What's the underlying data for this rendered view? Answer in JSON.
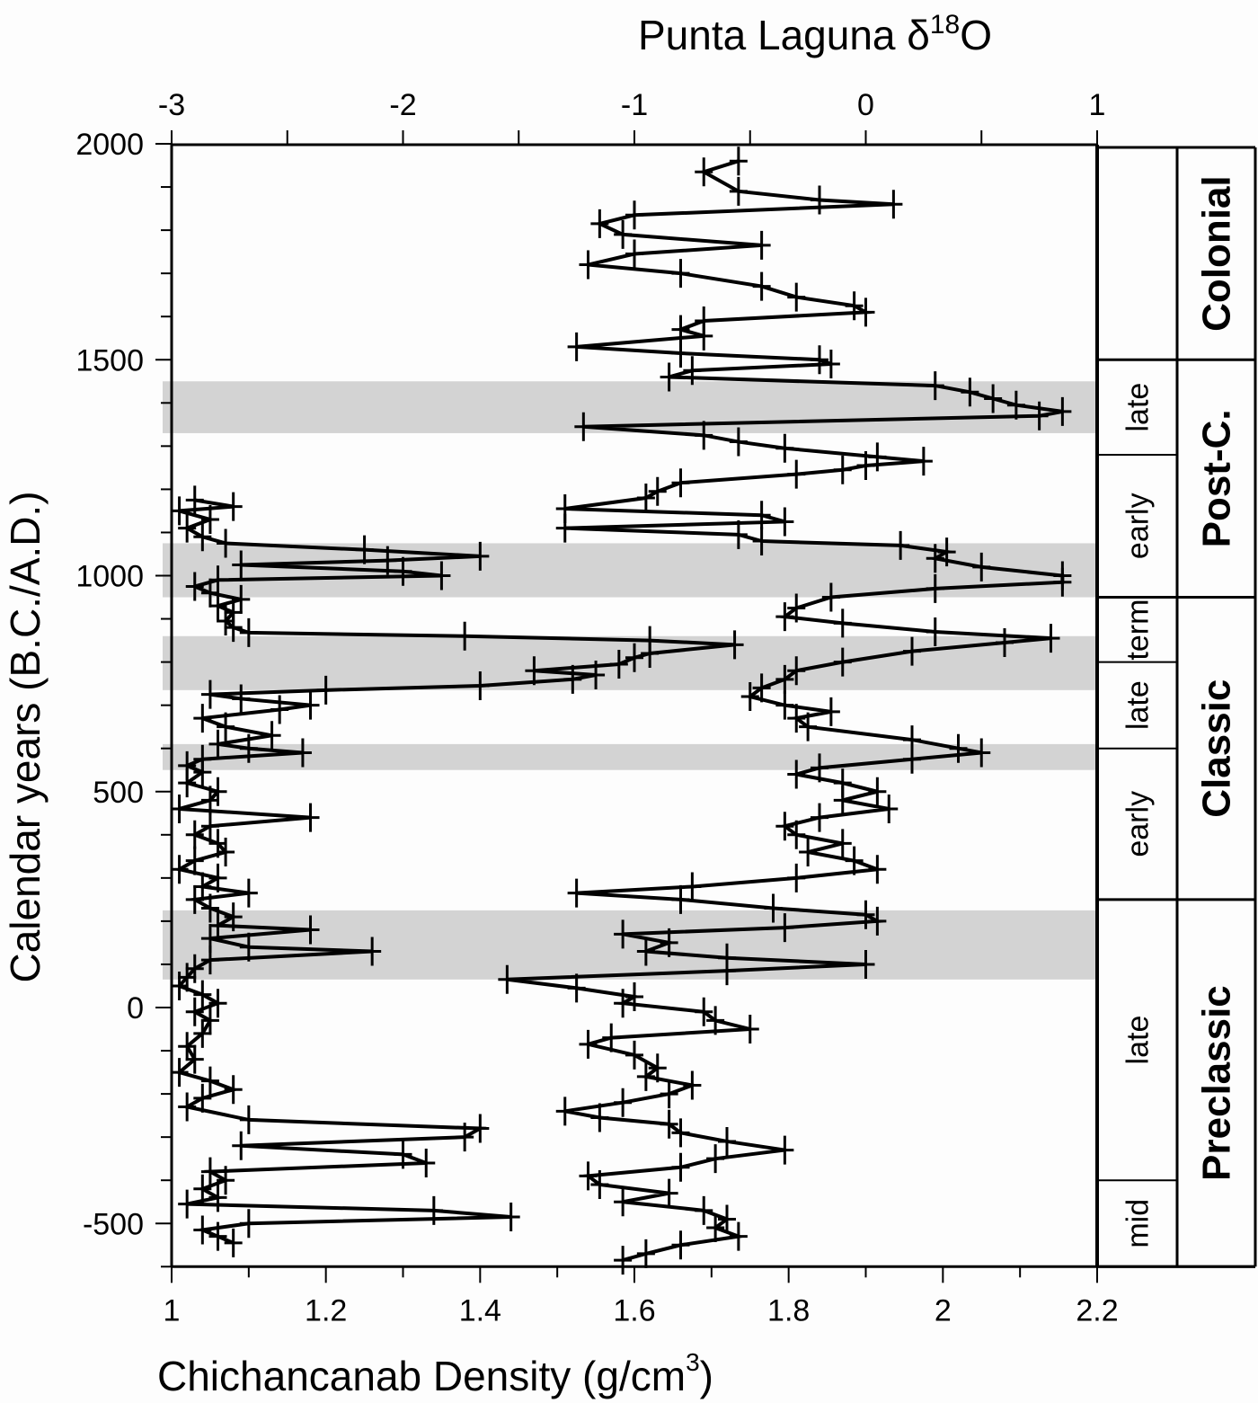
{
  "chart_data": {
    "type": "line",
    "title": "",
    "top_axis": {
      "label": "Punta Laguna δ18O",
      "label_main": "Punta Laguna δ",
      "label_sup": "18",
      "label_tail": "O",
      "ticks": [
        "-3",
        "-2",
        "-1",
        "0",
        "1"
      ],
      "range": [
        -3,
        1
      ]
    },
    "bottom_axis": {
      "label": "Chichancanab Density (g/cm3)",
      "label_main": "Chichancanab Density (g/cm",
      "label_sup": "3",
      "label_tail": ")",
      "ticks": [
        "1",
        "1.2",
        "1.4",
        "1.6",
        "1.8",
        "2",
        "2.2"
      ],
      "range": [
        1.0,
        2.2
      ]
    },
    "left_axis": {
      "label": "Calendar years (B.C./A.D.)",
      "ticks": [
        "2000",
        "1500",
        "1000",
        "500",
        "0",
        "-500"
      ],
      "range": [
        -600,
        2000
      ]
    },
    "shaded_dry_intervals": [
      {
        "from": 1330,
        "to": 1450
      },
      {
        "from": 950,
        "to": 1075
      },
      {
        "from": 735,
        "to": 860
      },
      {
        "from": 550,
        "to": 610
      },
      {
        "from": 65,
        "to": 225
      }
    ],
    "series": [
      {
        "name": "Chichancanab Density",
        "axis": "bottom",
        "unit": "g/cm3",
        "points": [
          [
            1175,
            1.03
          ],
          [
            1160,
            1.08
          ],
          [
            1150,
            1.01
          ],
          [
            1130,
            1.05
          ],
          [
            1110,
            1.02
          ],
          [
            1090,
            1.04
          ],
          [
            1075,
            1.07
          ],
          [
            1060,
            1.25
          ],
          [
            1045,
            1.4
          ],
          [
            1035,
            1.28
          ],
          [
            1025,
            1.09
          ],
          [
            1010,
            1.3
          ],
          [
            1000,
            1.35
          ],
          [
            990,
            1.06
          ],
          [
            975,
            1.03
          ],
          [
            960,
            1.05
          ],
          [
            945,
            1.09
          ],
          [
            930,
            1.06
          ],
          [
            915,
            1.08
          ],
          [
            895,
            1.07
          ],
          [
            880,
            1.08
          ],
          [
            868,
            1.1
          ],
          [
            860,
            1.38
          ],
          [
            850,
            1.62
          ],
          [
            840,
            1.73
          ],
          [
            820,
            1.62
          ],
          [
            810,
            1.6
          ],
          [
            795,
            1.58
          ],
          [
            780,
            1.47
          ],
          [
            770,
            1.55
          ],
          [
            760,
            1.52
          ],
          [
            745,
            1.4
          ],
          [
            735,
            1.2
          ],
          [
            725,
            1.05
          ],
          [
            715,
            1.09
          ],
          [
            700,
            1.18
          ],
          [
            690,
            1.14
          ],
          [
            670,
            1.04
          ],
          [
            650,
            1.07
          ],
          [
            630,
            1.13
          ],
          [
            610,
            1.06
          ],
          [
            600,
            1.1
          ],
          [
            590,
            1.17
          ],
          [
            575,
            1.04
          ],
          [
            560,
            1.02
          ],
          [
            545,
            1.04
          ],
          [
            520,
            1.02
          ],
          [
            500,
            1.06
          ],
          [
            480,
            1.05
          ],
          [
            460,
            1.01
          ],
          [
            440,
            1.18
          ],
          [
            420,
            1.05
          ],
          [
            400,
            1.03
          ],
          [
            380,
            1.06
          ],
          [
            360,
            1.07
          ],
          [
            340,
            1.03
          ],
          [
            320,
            1.01
          ],
          [
            300,
            1.06
          ],
          [
            280,
            1.04
          ],
          [
            265,
            1.1
          ],
          [
            250,
            1.03
          ],
          [
            230,
            1.05
          ],
          [
            210,
            1.08
          ],
          [
            190,
            1.06
          ],
          [
            180,
            1.18
          ],
          [
            160,
            1.05
          ],
          [
            140,
            1.1
          ],
          [
            130,
            1.26
          ],
          [
            110,
            1.05
          ],
          [
            90,
            1.03
          ],
          [
            70,
            1.02
          ],
          [
            50,
            1.01
          ],
          [
            30,
            1.04
          ],
          [
            10,
            1.06
          ],
          [
            -10,
            1.03
          ],
          [
            -30,
            1.05
          ],
          [
            -60,
            1.04
          ],
          [
            -90,
            1.02
          ],
          [
            -120,
            1.03
          ],
          [
            -150,
            1.01
          ],
          [
            -170,
            1.05
          ],
          [
            -190,
            1.08
          ],
          [
            -210,
            1.04
          ],
          [
            -230,
            1.02
          ],
          [
            -260,
            1.1
          ],
          [
            -280,
            1.4
          ],
          [
            -300,
            1.38
          ],
          [
            -320,
            1.09
          ],
          [
            -340,
            1.3
          ],
          [
            -360,
            1.33
          ],
          [
            -380,
            1.05
          ],
          [
            -400,
            1.07
          ],
          [
            -420,
            1.04
          ],
          [
            -440,
            1.06
          ],
          [
            -455,
            1.02
          ],
          [
            -470,
            1.34
          ],
          [
            -485,
            1.44
          ],
          [
            -500,
            1.1
          ],
          [
            -515,
            1.04
          ],
          [
            -530,
            1.06
          ],
          [
            -545,
            1.08
          ]
        ]
      },
      {
        "name": "Punta Laguna δ18O",
        "axis": "top",
        "unit": "‰",
        "points": [
          [
            1960,
            -0.55
          ],
          [
            1935,
            -0.7
          ],
          [
            1890,
            -0.55
          ],
          [
            1870,
            -0.2
          ],
          [
            1860,
            0.12
          ],
          [
            1835,
            -1.0
          ],
          [
            1815,
            -1.15
          ],
          [
            1790,
            -1.05
          ],
          [
            1765,
            -0.45
          ],
          [
            1745,
            -1.0
          ],
          [
            1720,
            -1.2
          ],
          [
            1700,
            -0.8
          ],
          [
            1670,
            -0.45
          ],
          [
            1645,
            -0.3
          ],
          [
            1625,
            -0.05
          ],
          [
            1610,
            0.0
          ],
          [
            1590,
            -0.7
          ],
          [
            1570,
            -0.8
          ],
          [
            1555,
            -0.7
          ],
          [
            1530,
            -1.25
          ],
          [
            1515,
            -0.8
          ],
          [
            1500,
            -0.2
          ],
          [
            1490,
            -0.15
          ],
          [
            1475,
            -0.75
          ],
          [
            1460,
            -0.85
          ],
          [
            1440,
            0.3
          ],
          [
            1425,
            0.45
          ],
          [
            1410,
            0.55
          ],
          [
            1395,
            0.65
          ],
          [
            1380,
            0.85
          ],
          [
            1370,
            0.75
          ],
          [
            1345,
            -1.22
          ],
          [
            1325,
            -0.7
          ],
          [
            1310,
            -0.55
          ],
          [
            1295,
            -0.35
          ],
          [
            1275,
            0.05
          ],
          [
            1265,
            0.25
          ],
          [
            1255,
            0.0
          ],
          [
            1245,
            -0.1
          ],
          [
            1235,
            -0.3
          ],
          [
            1215,
            -0.8
          ],
          [
            1195,
            -0.9
          ],
          [
            1180,
            -0.95
          ],
          [
            1155,
            -1.3
          ],
          [
            1140,
            -0.45
          ],
          [
            1125,
            -0.35
          ],
          [
            1110,
            -1.3
          ],
          [
            1095,
            -0.55
          ],
          [
            1080,
            -0.45
          ],
          [
            1070,
            0.15
          ],
          [
            1055,
            0.35
          ],
          [
            1040,
            0.3
          ],
          [
            1020,
            0.5
          ],
          [
            1000,
            0.85
          ],
          [
            985,
            0.85
          ],
          [
            970,
            0.3
          ],
          [
            950,
            -0.15
          ],
          [
            925,
            -0.3
          ],
          [
            905,
            -0.35
          ],
          [
            890,
            -0.1
          ],
          [
            870,
            0.3
          ],
          [
            855,
            0.8
          ],
          [
            845,
            0.6
          ],
          [
            825,
            0.2
          ],
          [
            800,
            -0.1
          ],
          [
            780,
            -0.3
          ],
          [
            760,
            -0.35
          ],
          [
            740,
            -0.45
          ],
          [
            720,
            -0.5
          ],
          [
            700,
            -0.35
          ],
          [
            685,
            -0.15
          ],
          [
            670,
            -0.3
          ],
          [
            650,
            -0.25
          ],
          [
            620,
            0.2
          ],
          [
            600,
            0.4
          ],
          [
            590,
            0.5
          ],
          [
            575,
            0.2
          ],
          [
            555,
            -0.2
          ],
          [
            540,
            -0.3
          ],
          [
            520,
            -0.1
          ],
          [
            500,
            0.05
          ],
          [
            480,
            -0.1
          ],
          [
            460,
            0.1
          ],
          [
            440,
            -0.2
          ],
          [
            420,
            -0.35
          ],
          [
            400,
            -0.3
          ],
          [
            380,
            -0.1
          ],
          [
            360,
            -0.25
          ],
          [
            340,
            -0.05
          ],
          [
            320,
            0.05
          ],
          [
            300,
            -0.3
          ],
          [
            280,
            -0.75
          ],
          [
            265,
            -1.25
          ],
          [
            250,
            -0.8
          ],
          [
            230,
            -0.4
          ],
          [
            215,
            0.0
          ],
          [
            200,
            0.05
          ],
          [
            185,
            -0.35
          ],
          [
            170,
            -1.05
          ],
          [
            150,
            -0.85
          ],
          [
            130,
            -0.95
          ],
          [
            115,
            -0.6
          ],
          [
            100,
            0.0
          ],
          [
            85,
            -0.6
          ],
          [
            65,
            -1.55
          ],
          [
            45,
            -1.25
          ],
          [
            25,
            -1.0
          ],
          [
            10,
            -1.05
          ],
          [
            -10,
            -0.7
          ],
          [
            -30,
            -0.65
          ],
          [
            -50,
            -0.5
          ],
          [
            -70,
            -1.1
          ],
          [
            -85,
            -1.2
          ],
          [
            -110,
            -1.0
          ],
          [
            -140,
            -0.9
          ],
          [
            -160,
            -0.95
          ],
          [
            -180,
            -0.75
          ],
          [
            -200,
            -0.85
          ],
          [
            -220,
            -1.05
          ],
          [
            -240,
            -1.3
          ],
          [
            -255,
            -1.15
          ],
          [
            -270,
            -0.85
          ],
          [
            -290,
            -0.8
          ],
          [
            -310,
            -0.6
          ],
          [
            -330,
            -0.35
          ],
          [
            -350,
            -0.65
          ],
          [
            -370,
            -0.8
          ],
          [
            -390,
            -1.2
          ],
          [
            -410,
            -1.15
          ],
          [
            -430,
            -0.85
          ],
          [
            -450,
            -1.05
          ],
          [
            -470,
            -0.7
          ],
          [
            -490,
            -0.6
          ],
          [
            -510,
            -0.65
          ],
          [
            -530,
            -0.55
          ],
          [
            -550,
            -0.8
          ],
          [
            -570,
            -0.95
          ],
          [
            -585,
            -1.05
          ]
        ]
      }
    ],
    "periods": [
      {
        "major": "Colonial",
        "from": 1500,
        "to": 2000,
        "subs": []
      },
      {
        "major": "Post-C.",
        "from": 950,
        "to": 1500,
        "subs": [
          {
            "label": "late",
            "from": 1280,
            "to": 1500
          },
          {
            "label": "early",
            "from": 950,
            "to": 1280
          }
        ]
      },
      {
        "major": "Classic",
        "from": 250,
        "to": 950,
        "subs": [
          {
            "label": "term",
            "from": 800,
            "to": 950
          },
          {
            "label": "late",
            "from": 600,
            "to": 800
          },
          {
            "label": "early",
            "from": 250,
            "to": 600
          }
        ]
      },
      {
        "major": "Preclassic",
        "from": -600,
        "to": 250,
        "subs": [
          {
            "label": "late",
            "from": -400,
            "to": 250
          },
          {
            "label": "mid",
            "from": -600,
            "to": -400
          }
        ]
      }
    ],
    "colors": {
      "line": "#000000",
      "shade": "#d3d3d3",
      "background": "#fdfdfd"
    },
    "grid": false,
    "legend": "none"
  }
}
